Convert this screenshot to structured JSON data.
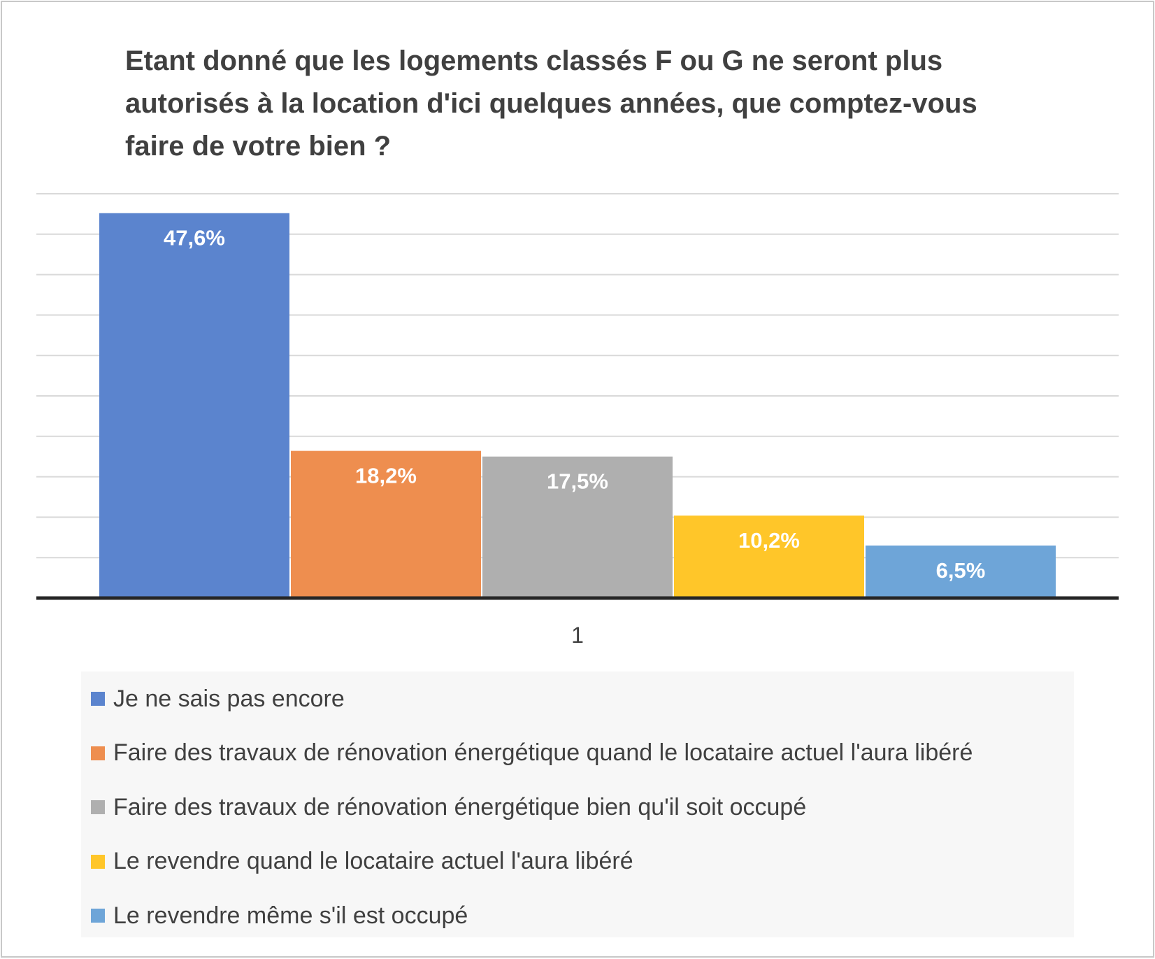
{
  "chart_data": {
    "type": "bar",
    "title": "Etant donné que les logements classés F ou G ne seront plus autorisés à la location d'ici quelques années, que comptez-vous faire de votre bien ?",
    "categories": [
      "1"
    ],
    "ylim": [
      0,
      50
    ],
    "grid": true,
    "legend_position": "bottom",
    "series": [
      {
        "name": "Je ne sais pas encore",
        "values": [
          47.6
        ],
        "label": "47,6%",
        "color": "#5B84CE"
      },
      {
        "name": "Faire des travaux de rénovation énergétique quand le locataire actuel l'aura libéré",
        "values": [
          18.2
        ],
        "label": "18,2%",
        "color": "#EE8E4F"
      },
      {
        "name": "Faire des travaux de rénovation énergétique bien qu'il soit occupé",
        "values": [
          17.5
        ],
        "label": "17,5%",
        "color": "#AFAFAF"
      },
      {
        "name": "Le revendre quand le locataire actuel l'aura libéré",
        "values": [
          10.2
        ],
        "label": "10,2%",
        "color": "#FFC629"
      },
      {
        "name": "Le revendre même s'il est occupé",
        "values": [
          6.5
        ],
        "label": "6,5%",
        "color": "#6EA5D8"
      }
    ]
  }
}
